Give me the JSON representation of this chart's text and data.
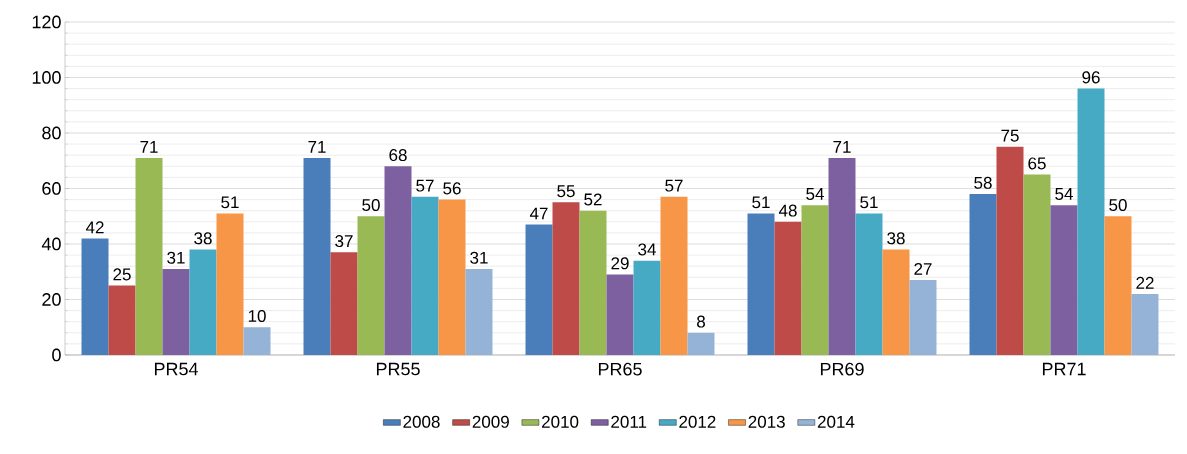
{
  "chart_data": {
    "type": "bar",
    "categories": [
      "PR54",
      "PR55",
      "PR65",
      "PR69",
      "PR71"
    ],
    "series": [
      {
        "name": "2008",
        "color": "#4a7ebb",
        "values": [
          42,
          71,
          47,
          51,
          58
        ]
      },
      {
        "name": "2009",
        "color": "#be4b48",
        "values": [
          25,
          37,
          55,
          48,
          75
        ]
      },
      {
        "name": "2010",
        "color": "#98b954",
        "values": [
          71,
          50,
          52,
          54,
          65
        ]
      },
      {
        "name": "2011",
        "color": "#7d60a0",
        "values": [
          31,
          68,
          29,
          71,
          54
        ]
      },
      {
        "name": "2012",
        "color": "#46aac5",
        "values": [
          38,
          57,
          34,
          51,
          96
        ]
      },
      {
        "name": "2013",
        "color": "#f79646",
        "values": [
          51,
          56,
          57,
          38,
          50
        ]
      },
      {
        "name": "2014",
        "color": "#95b3d7",
        "values": [
          10,
          31,
          8,
          27,
          22
        ]
      }
    ],
    "ylim": [
      0,
      120
    ],
    "yticks": [
      0,
      20,
      40,
      60,
      80,
      100,
      120
    ],
    "grid": "y",
    "data_labels": true,
    "legend": "bottom"
  }
}
